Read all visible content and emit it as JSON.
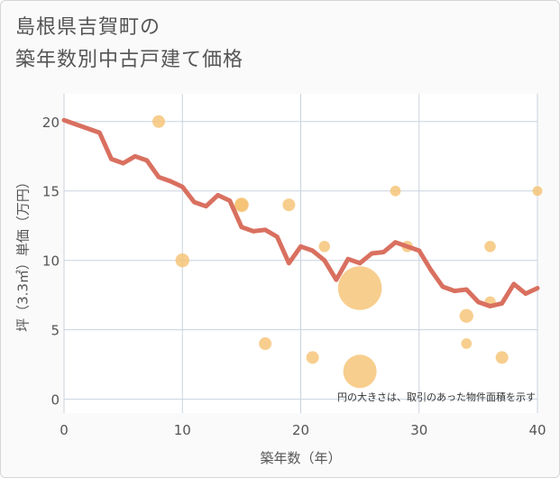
{
  "chart_data": {
    "type": "scatter",
    "title_lines": [
      "島根県吉賀町の",
      "築年数別中古戸建て価格"
    ],
    "xlabel": "築年数（年）",
    "ylabel": "坪（3.3㎡）単価（万円）",
    "xlim": [
      0,
      40
    ],
    "ylim": [
      -1,
      22
    ],
    "x_ticks": [
      0,
      10,
      20,
      30,
      40
    ],
    "y_ticks": [
      0,
      5,
      10,
      15,
      20
    ],
    "grid": true,
    "note": "円の大きさは、取引のあった物件面積を示す",
    "colors": {
      "line": "#d97060",
      "bubble": "#f5c272",
      "grid": "#c9d3df",
      "background": "#ffffff"
    },
    "line_series": {
      "x": [
        0,
        1,
        2,
        3,
        4,
        5,
        6,
        7,
        8,
        9,
        10,
        11,
        12,
        13,
        14,
        15,
        16,
        17,
        18,
        19,
        20,
        21,
        22,
        23,
        24,
        25,
        26,
        27,
        28,
        29,
        30,
        31,
        32,
        33,
        34,
        35,
        36,
        37,
        38,
        39,
        40
      ],
      "y": [
        20.1,
        19.8,
        19.5,
        19.2,
        17.3,
        17.0,
        17.5,
        17.2,
        16.0,
        15.7,
        15.3,
        14.2,
        13.9,
        14.7,
        14.3,
        12.4,
        12.1,
        12.2,
        11.7,
        9.8,
        11.0,
        10.7,
        10.0,
        8.6,
        10.1,
        9.8,
        10.5,
        10.6,
        11.3,
        11.0,
        10.7,
        9.3,
        8.1,
        7.8,
        7.9,
        7.0,
        6.7,
        6.9,
        8.3,
        7.6,
        8.0
      ]
    },
    "bubbles": [
      {
        "x": 8,
        "y": 20,
        "size": 1
      },
      {
        "x": 10,
        "y": 10,
        "size": 1.2
      },
      {
        "x": 15,
        "y": 14,
        "size": 1.3
      },
      {
        "x": 15,
        "y": 14,
        "size": 1
      },
      {
        "x": 17,
        "y": 4,
        "size": 1
      },
      {
        "x": 19,
        "y": 14,
        "size": 1
      },
      {
        "x": 21,
        "y": 3,
        "size": 1
      },
      {
        "x": 22,
        "y": 11,
        "size": 0.8
      },
      {
        "x": 25,
        "y": 8,
        "size": 12
      },
      {
        "x": 25,
        "y": 2,
        "size": 7
      },
      {
        "x": 28,
        "y": 15,
        "size": 0.7
      },
      {
        "x": 29,
        "y": 11,
        "size": 0.8
      },
      {
        "x": 34,
        "y": 6,
        "size": 1.2
      },
      {
        "x": 34,
        "y": 4,
        "size": 0.7
      },
      {
        "x": 36,
        "y": 11,
        "size": 0.8
      },
      {
        "x": 36,
        "y": 7,
        "size": 0.8
      },
      {
        "x": 37,
        "y": 3,
        "size": 1
      },
      {
        "x": 40,
        "y": 15,
        "size": 0.6
      }
    ]
  }
}
